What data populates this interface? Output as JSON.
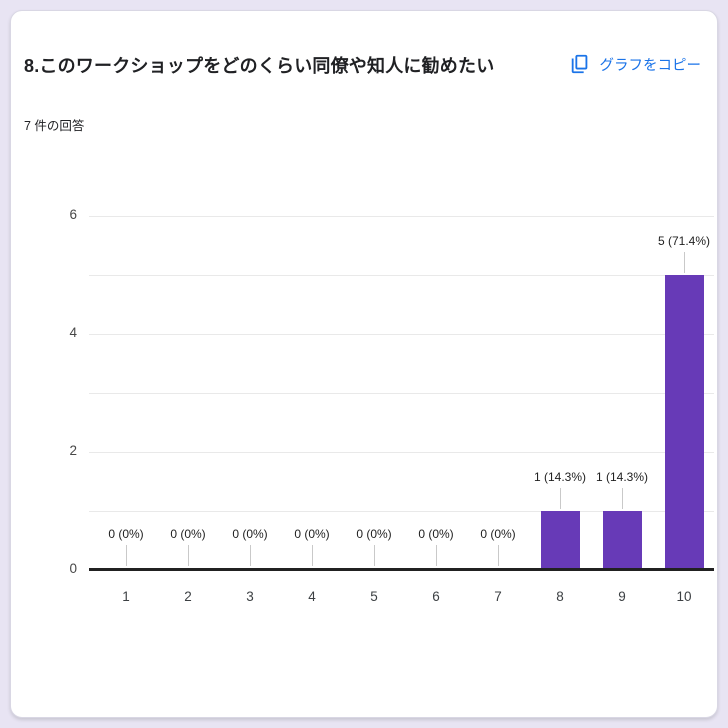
{
  "page": {
    "background_color": "#e8e4f3",
    "card_color": "#ffffff"
  },
  "header": {
    "title": "8.このワークショップをどのくらい同僚や知人に勧めたい",
    "responses_count": "7 件の回答",
    "copy_button": {
      "label": "グラフをコピー",
      "icon": "copy-icon",
      "color": "#1a73e8"
    }
  },
  "chart_data": {
    "type": "bar",
    "title": "",
    "categories": [
      "1",
      "2",
      "3",
      "4",
      "5",
      "6",
      "7",
      "8",
      "9",
      "10"
    ],
    "values": [
      0,
      0,
      0,
      0,
      0,
      0,
      0,
      1,
      1,
      5
    ],
    "bar_labels": [
      "0 (0%)",
      "0 (0%)",
      "0 (0%)",
      "0 (0%)",
      "0 (0%)",
      "0 (0%)",
      "0 (0%)",
      "1 (14.3%)",
      "1 (14.3%)",
      "5 (71.4%)"
    ],
    "xlabel": "",
    "ylabel": "",
    "ylim": [
      0,
      6
    ],
    "yticks": [
      0,
      2,
      4,
      6
    ],
    "grid": true,
    "gridline_step": 1,
    "legend": "none",
    "bar_color": "#673ab7",
    "axis_color": "#212121"
  }
}
